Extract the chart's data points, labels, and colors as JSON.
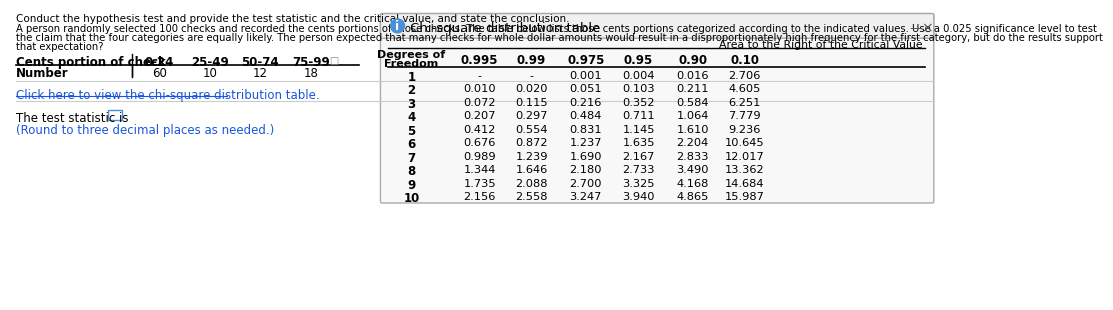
{
  "title_line1": "Conduct the hypothesis test and provide the test statistic and the critical value, and state the conclusion.",
  "title_line2": "A person randomly selected 100 checks and recorded the cents portions of those checks. The table below lists those cents portions categorized according to the indicated values. Use a 0.025 significance level to test",
  "title_line3": "the claim that the four categories are equally likely. The person expected that many checks for whole dollar amounts would result in a disproportionately high frequency for the first category, but do the results support",
  "title_line4": "that expectation?",
  "table_header": [
    "Cents portion of check",
    "0-24",
    "25-49",
    "50-74",
    "75-99"
  ],
  "table_row": [
    "Number",
    "60",
    "10",
    "12",
    "18"
  ],
  "link_text": "Click here to view the chi-square distribution table.",
  "test_stat_text": "The test statistic is",
  "round_text": "(Round to three decimal places as needed.)",
  "chi_panel_title": "Chi-square distribution table",
  "area_header": "Area to the Right of the Critical Value",
  "col_headers": [
    "Degrees of Freedom",
    "0.995",
    "0.99",
    "0.975",
    "0.95",
    "0.90",
    "0.10"
  ],
  "rows": [
    [
      "1",
      "-",
      "-",
      "0.001",
      "0.004",
      "0.016",
      "2.706"
    ],
    [
      "2",
      "0.010",
      "0.020",
      "0.051",
      "0.103",
      "0.211",
      "4.605"
    ],
    [
      "3",
      "0.072",
      "0.115",
      "0.216",
      "0.352",
      "0.584",
      "6.251"
    ],
    [
      "4",
      "0.207",
      "0.297",
      "0.484",
      "0.711",
      "1.064",
      "7.779"
    ],
    [
      "5",
      "0.412",
      "0.554",
      "0.831",
      "1.145",
      "1.610",
      "9.236"
    ],
    [
      "6",
      "0.676",
      "0.872",
      "1.237",
      "1.635",
      "2.204",
      "10.645"
    ],
    [
      "7",
      "0.989",
      "1.239",
      "1.690",
      "2.167",
      "2.833",
      "12.017"
    ],
    [
      "8",
      "1.344",
      "1.646",
      "2.180",
      "2.733",
      "3.490",
      "13.362"
    ],
    [
      "9",
      "1.735",
      "2.088",
      "2.700",
      "3.325",
      "4.168",
      "14.684"
    ],
    [
      "10",
      "2.156",
      "2.558",
      "3.247",
      "3.940",
      "4.865",
      "15.987"
    ]
  ],
  "bg_color": "#ffffff",
  "text_color": "#000000",
  "link_color": "#1a56db",
  "info_icon_color": "#4a90d9",
  "panel_border": "#aaaaaa",
  "panel_bg": "#f8f8f8",
  "title_bar_bg": "#f0f0f0"
}
